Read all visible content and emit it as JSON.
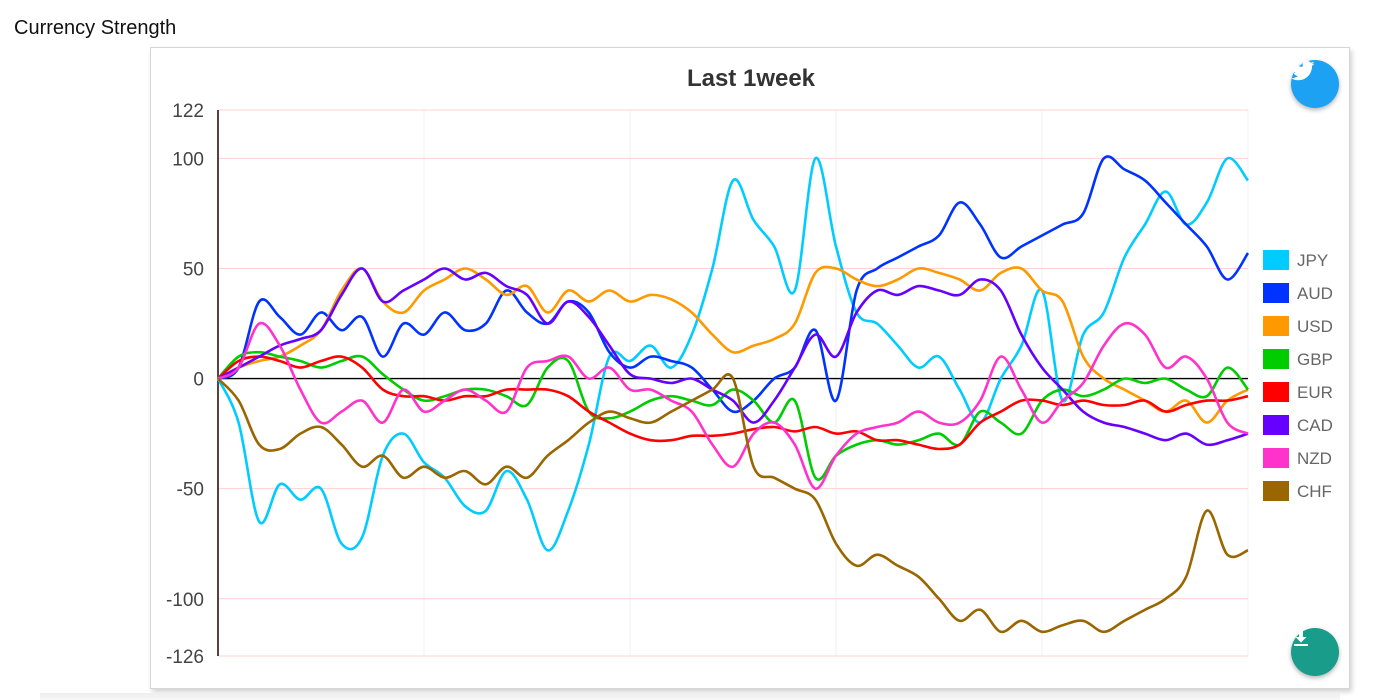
{
  "page": {
    "title": "Currency Strength"
  },
  "buttons": {
    "share_icon": "twitter-icon",
    "download_icon": "download-icon"
  },
  "chart_data": {
    "type": "line",
    "title": "Last 1week",
    "xlabel": "",
    "ylabel": "",
    "ylim": [
      -126,
      122
    ],
    "yticks": [
      122,
      100,
      50,
      0,
      -50,
      -100,
      -126
    ],
    "grid": true,
    "legend_position": "right",
    "x": [
      0,
      1,
      2,
      3,
      4,
      5,
      6,
      7,
      8,
      9,
      10,
      11,
      12,
      13,
      14,
      15,
      16,
      17,
      18,
      19,
      20,
      21,
      22,
      23,
      24,
      25,
      26,
      27,
      28,
      29,
      30,
      31,
      32,
      33,
      34,
      35,
      36,
      37,
      38,
      39,
      40,
      41,
      42,
      43,
      44,
      45,
      46,
      47,
      48,
      49,
      50
    ],
    "series": [
      {
        "name": "JPY",
        "color": "#00ccff",
        "values": [
          0,
          -20,
          -65,
          -48,
          -55,
          -50,
          -75,
          -72,
          -35,
          -25,
          -38,
          -45,
          -58,
          -60,
          -42,
          -55,
          -78,
          -60,
          -30,
          10,
          8,
          15,
          5,
          20,
          50,
          90,
          72,
          60,
          40,
          100,
          60,
          30,
          25,
          15,
          5,
          10,
          -5,
          -20,
          0,
          15,
          40,
          -10,
          20,
          30,
          55,
          70,
          85,
          70,
          80,
          100,
          90
        ]
      },
      {
        "name": "AUD",
        "color": "#0033ff",
        "values": [
          0,
          5,
          35,
          28,
          20,
          30,
          22,
          28,
          10,
          25,
          20,
          30,
          22,
          25,
          40,
          30,
          25,
          35,
          30,
          12,
          5,
          10,
          8,
          5,
          -5,
          -15,
          -10,
          0,
          5,
          22,
          -10,
          40,
          50,
          55,
          60,
          65,
          80,
          70,
          55,
          60,
          65,
          70,
          75,
          100,
          95,
          90,
          80,
          70,
          60,
          45,
          57
        ]
      },
      {
        "name": "USD",
        "color": "#ff9900",
        "values": [
          0,
          5,
          8,
          10,
          15,
          22,
          40,
          50,
          35,
          30,
          40,
          45,
          50,
          45,
          38,
          42,
          30,
          40,
          35,
          40,
          35,
          38,
          36,
          30,
          20,
          12,
          15,
          18,
          25,
          48,
          50,
          45,
          42,
          45,
          50,
          48,
          45,
          40,
          48,
          50,
          40,
          35,
          10,
          0,
          -5,
          -10,
          -15,
          -10,
          -20,
          -10,
          -5
        ]
      },
      {
        "name": "GBP",
        "color": "#00cc00",
        "values": [
          0,
          10,
          12,
          10,
          8,
          5,
          8,
          10,
          2,
          -5,
          -10,
          -8,
          -5,
          -5,
          -8,
          -12,
          5,
          8,
          -15,
          -18,
          -15,
          -10,
          -8,
          -10,
          -12,
          -5,
          -10,
          -20,
          -10,
          -45,
          -35,
          -30,
          -28,
          -30,
          -28,
          -25,
          -30,
          -15,
          -20,
          -25,
          -10,
          -5,
          -8,
          -5,
          0,
          -2,
          0,
          -5,
          -8,
          5,
          -5
        ]
      },
      {
        "name": "EUR",
        "color": "#ff0000",
        "values": [
          0,
          8,
          10,
          8,
          5,
          8,
          10,
          5,
          -5,
          -8,
          -8,
          -10,
          -8,
          -8,
          -5,
          -5,
          -5,
          -8,
          -15,
          -20,
          -25,
          -28,
          -28,
          -26,
          -26,
          -25,
          -23,
          -22,
          -24,
          -22,
          -25,
          -24,
          -28,
          -28,
          -30,
          -32,
          -30,
          -20,
          -15,
          -10,
          -10,
          -12,
          -10,
          -12,
          -12,
          -10,
          -15,
          -12,
          -10,
          -10,
          -8
        ]
      },
      {
        "name": "CAD",
        "color": "#6600ff",
        "values": [
          0,
          5,
          10,
          15,
          18,
          22,
          38,
          50,
          35,
          40,
          45,
          50,
          45,
          48,
          42,
          38,
          25,
          35,
          28,
          15,
          2,
          0,
          -2,
          0,
          -5,
          -10,
          -20,
          -10,
          5,
          20,
          10,
          30,
          40,
          38,
          42,
          40,
          38,
          45,
          40,
          20,
          5,
          -5,
          -15,
          -20,
          -22,
          -25,
          -28,
          -25,
          -30,
          -28,
          -25
        ]
      },
      {
        "name": "NZD",
        "color": "#ff33cc",
        "values": [
          0,
          5,
          25,
          15,
          -5,
          -20,
          -15,
          -10,
          -20,
          -5,
          -15,
          -10,
          -5,
          -10,
          -15,
          5,
          8,
          10,
          0,
          5,
          -5,
          -5,
          -10,
          -15,
          -30,
          -40,
          -25,
          -20,
          -30,
          -50,
          -35,
          -25,
          -22,
          -20,
          -15,
          -20,
          -20,
          -10,
          10,
          -5,
          -20,
          -10,
          -2,
          15,
          25,
          20,
          5,
          10,
          0,
          -20,
          -25
        ]
      },
      {
        "name": "CHF",
        "color": "#996600",
        "values": [
          0,
          -10,
          -30,
          -32,
          -25,
          -22,
          -30,
          -40,
          -35,
          -45,
          -40,
          -45,
          -42,
          -48,
          -40,
          -45,
          -35,
          -28,
          -20,
          -15,
          -18,
          -20,
          -15,
          -10,
          -5,
          0,
          -40,
          -45,
          -50,
          -55,
          -75,
          -85,
          -80,
          -85,
          -90,
          -100,
          -110,
          -105,
          -115,
          -110,
          -115,
          -112,
          -110,
          -115,
          -110,
          -105,
          -100,
          -90,
          -60,
          -80,
          -78
        ]
      }
    ]
  }
}
